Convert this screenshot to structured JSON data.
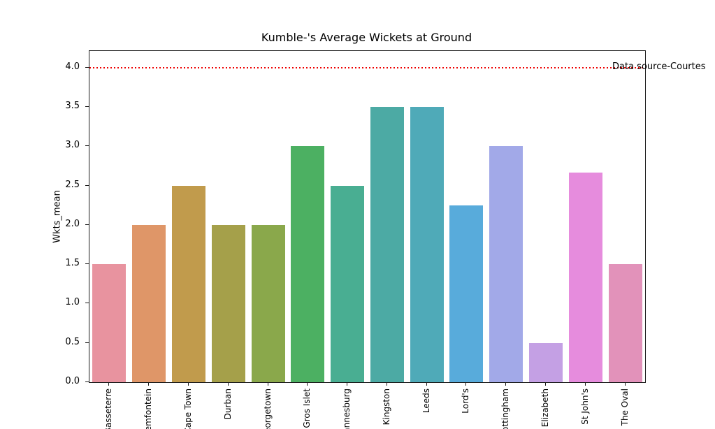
{
  "figure": {
    "title": "Kumble-'s Average Wickets at Ground",
    "ylabel": "Wkts_mean",
    "annotation": "Data source-Courtes"
  },
  "chart_data": {
    "type": "bar",
    "title": "Kumble-'s Average Wickets at Ground",
    "xlabel": "",
    "ylabel": "Wkts_mean",
    "categories": [
      "Basseterre",
      "Bloemfontein",
      "Cape Town",
      "Durban",
      "Georgetown",
      "Gros Islet",
      "Johannesburg",
      "Kingston",
      "Leeds",
      "Lord's",
      "Nottingham",
      "Port Elizabeth",
      "St John's",
      "The Oval"
    ],
    "values": [
      1.5,
      2.0,
      2.5,
      2.0,
      2.0,
      3.0,
      2.5,
      3.5,
      3.5,
      2.25,
      3.0,
      0.5,
      2.6667,
      1.5
    ],
    "bar_colors": [
      "#e8939f",
      "#df9668",
      "#c19b4c",
      "#a5a04a",
      "#8aa84b",
      "#4cb062",
      "#49ae92",
      "#4caaa4",
      "#4faab8",
      "#58abdb",
      "#a2a9e8",
      "#c4a0e4",
      "#e68cdd",
      "#e292ba"
    ],
    "yticks": [
      0.0,
      0.5,
      1.0,
      1.5,
      2.0,
      2.5,
      3.0,
      3.5,
      4.0
    ],
    "ylim": [
      0,
      4.21
    ],
    "grid": false,
    "legend": null,
    "reference_line": {
      "y": 4.0,
      "color": "#ee0000",
      "style": "dotted"
    },
    "annotations": [
      {
        "text": "Data source-Courtes",
        "y": 4.0,
        "color": "#000000"
      }
    ]
  }
}
